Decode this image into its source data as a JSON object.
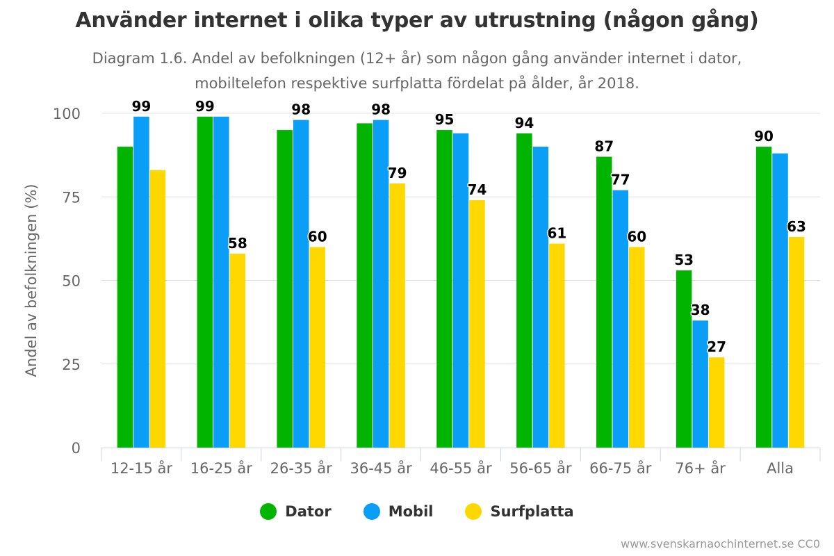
{
  "chart_data": {
    "type": "bar",
    "title": "Använder internet i olika typer av utrustning (någon gång)",
    "subtitle_line1": "Diagram 1.6. Andel av befolkningen (12+ år) som någon gång använder internet i dator,",
    "subtitle_line2": "mobiltelefon respektive surfplatta fördelat på ålder, år 2018.",
    "xlabel": "",
    "ylabel": "Andel av befolkningen (%)",
    "ylim": [
      0,
      100
    ],
    "yticks": [
      0,
      25,
      50,
      75,
      100
    ],
    "grid": true,
    "categories": [
      "12-15 år",
      "16-25 år",
      "26-35 år",
      "36-45 år",
      "46-55 år",
      "56-65 år",
      "66-75 år",
      "76+ år",
      "Alla"
    ],
    "series": [
      {
        "name": "Dator",
        "color": "#00b400",
        "values": [
          90,
          99,
          95,
          97,
          95,
          94,
          87,
          53,
          90
        ],
        "labels": [
          "",
          "99",
          "",
          "",
          "95",
          "94",
          "87",
          "53",
          "90"
        ]
      },
      {
        "name": "Mobil",
        "color": "#0b9ef7",
        "values": [
          99,
          99,
          98,
          98,
          94,
          90,
          77,
          38,
          88
        ],
        "labels": [
          "99",
          "",
          "98",
          "98",
          "",
          "",
          "77",
          "38",
          ""
        ]
      },
      {
        "name": "Surfplatta",
        "color": "#ffd800",
        "values": [
          83,
          58,
          60,
          79,
          74,
          61,
          60,
          27,
          63
        ],
        "labels": [
          "",
          "58",
          "60",
          "79",
          "74",
          "61",
          "60",
          "27",
          "63"
        ]
      }
    ],
    "legend_position": "bottom"
  },
  "credit": "www.svenskarnaochinternet.se CC0"
}
